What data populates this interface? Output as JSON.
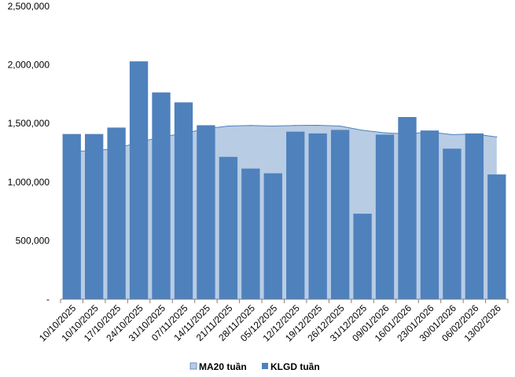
{
  "chart_data": {
    "type": "bar",
    "categories": [
      "10/10/2025",
      "10/10/2025",
      "17/10/2025",
      "24/10/2025",
      "31/10/2025",
      "07/11/2025",
      "14/11/2025",
      "21/11/2025",
      "28/11/2025",
      "05/12/2025",
      "12/12/2025",
      "19/12/2025",
      "26/12/2025",
      "31/12/2025",
      "09/01/2026",
      "16/01/2026",
      "23/01/2026",
      "30/01/2026",
      "06/02/2026",
      "13/02/2026"
    ],
    "series": [
      {
        "name": "MA20 tuần",
        "kind": "area",
        "color": "#b8cce4",
        "line_color": "#4f81bd",
        "values": [
          1260000,
          1270000,
          1285000,
          1340000,
          1385000,
          1415000,
          1455000,
          1478000,
          1483000,
          1478000,
          1483000,
          1485000,
          1478000,
          1442000,
          1420000,
          1410000,
          1428000,
          1405000,
          1410000,
          1385000
        ]
      },
      {
        "name": "KLGD tuần",
        "kind": "bar",
        "color": "#4f81bd",
        "values": [
          1410000,
          1410000,
          1465000,
          2030000,
          1765000,
          1680000,
          1485000,
          1215000,
          1115000,
          1075000,
          1430000,
          1415000,
          1445000,
          730000,
          1405000,
          1555000,
          1440000,
          1285000,
          1415000,
          1065000
        ]
      }
    ],
    "y_ticks": [
      "-",
      "500,000",
      "1,000,000",
      "1,500,000",
      "2,000,000",
      "2,500,000"
    ],
    "ylim": [
      0,
      2500000
    ],
    "legend_position": "bottom",
    "title": "",
    "xlabel": "",
    "ylabel": ""
  }
}
